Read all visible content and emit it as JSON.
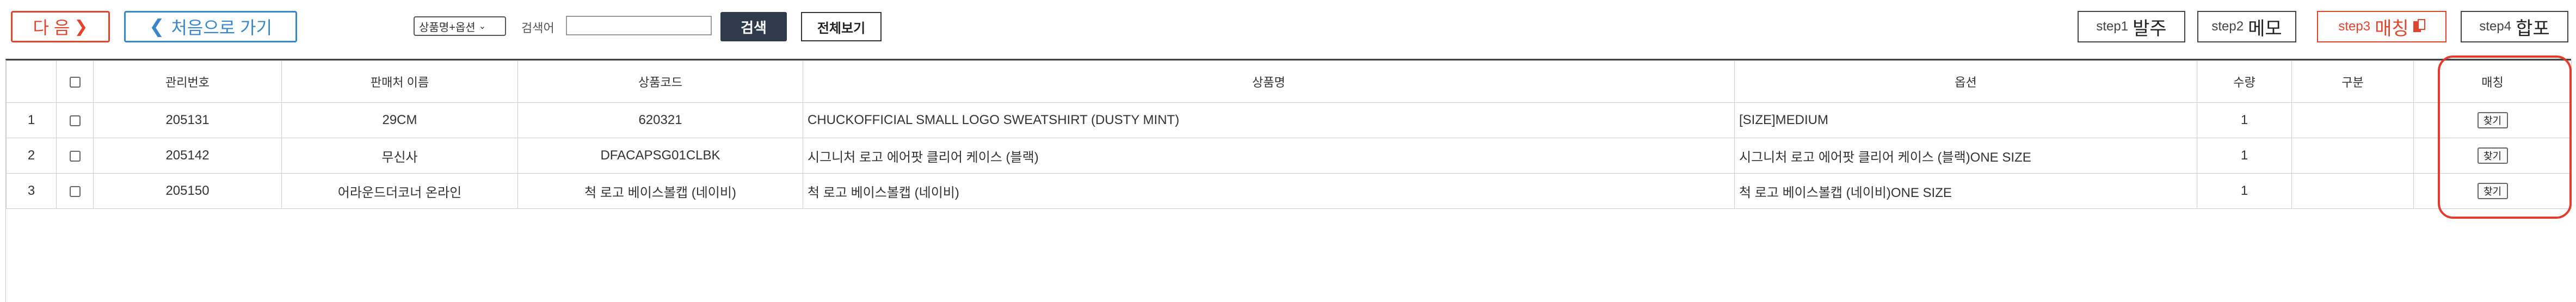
{
  "toolbar": {
    "next_label": "다 음",
    "next_icon": "chevron-right-icon",
    "first_label": "처음으로 가기",
    "first_icon": "chevron-left-icon",
    "search_field_select": "상품명+옵션",
    "search_label": "검색어",
    "search_value": "",
    "search_button": "검색",
    "view_all_button": "전체보기",
    "steps": [
      {
        "small": "step1",
        "big": "발주",
        "active": false
      },
      {
        "small": "step2",
        "big": "메모",
        "active": false
      },
      {
        "small": "step3",
        "big": "매칭",
        "active": true
      },
      {
        "small": "step4",
        "big": "합포",
        "active": false
      }
    ]
  },
  "table": {
    "headers": [
      "",
      "",
      "관리번호",
      "판매처 이름",
      "상품코드",
      "상품명",
      "옵션",
      "수량",
      "구분",
      "매칭"
    ],
    "find_label": "찾기",
    "rows": [
      {
        "no": "1",
        "mgmt": "205131",
        "seller": "29CM",
        "code": "620321",
        "product": "CHUCKOFFICIAL SMALL LOGO SWEATSHIRT (DUSTY MINT)",
        "option": "[SIZE]MEDIUM",
        "qty": "1",
        "type": ""
      },
      {
        "no": "2",
        "mgmt": "205142",
        "seller": "무신사",
        "code": "DFACAPSG01CLBK",
        "product": "시그니처 로고 에어팟 클리어 케이스 (블랙)",
        "option": "시그니처 로고 에어팟 클리어 케이스 (블랙)ONE SIZE",
        "qty": "1",
        "type": ""
      },
      {
        "no": "3",
        "mgmt": "205150",
        "seller": "어라운드더코너 온라인",
        "code": "척 로고 베이스볼캡 (네이비)",
        "product": "척 로고 베이스볼캡 (네이비)",
        "option": "척 로고 베이스볼캡 (네이비)ONE SIZE",
        "qty": "1",
        "type": ""
      }
    ]
  },
  "colors": {
    "accent_red": "#e0452f",
    "accent_blue": "#3a86c8",
    "search_button_bg": "#2f3a4b"
  }
}
